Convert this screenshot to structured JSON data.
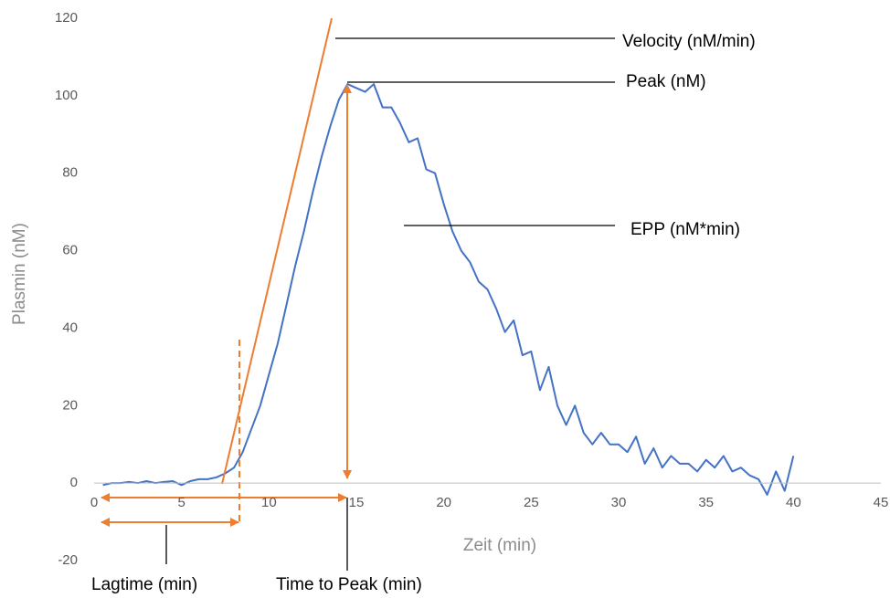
{
  "chart_data": {
    "type": "line",
    "x_label": "Zeit (min)",
    "y_label": "Plasmin (nM)",
    "x": [
      0.5,
      1,
      1.5,
      2,
      2.5,
      3,
      3.5,
      4,
      4.5,
      5,
      5.5,
      6,
      6.5,
      7,
      7.5,
      8,
      8.5,
      9,
      9.5,
      10,
      10.5,
      11,
      11.5,
      12,
      12.5,
      13,
      13.5,
      14,
      14.5,
      15,
      15.5,
      16,
      16.5,
      17,
      17.5,
      18,
      18.5,
      19,
      19.5,
      20,
      20.5,
      21,
      21.5,
      22,
      22.5,
      23,
      23.5,
      24,
      24.5,
      25,
      25.5,
      26,
      26.5,
      27,
      27.5,
      28,
      28.5,
      29,
      29.5,
      30,
      30.5,
      31,
      31.5,
      32,
      32.5,
      33,
      33.5,
      34,
      34.5,
      35,
      35.5,
      36,
      36.5,
      37,
      37.5,
      38,
      38.5,
      39,
      39.5,
      40
    ],
    "series": [
      {
        "color": "#4472c4",
        "values": [
          -0.5,
          0,
          0,
          0.3,
          0,
          0.5,
          0,
          0.3,
          0.5,
          -0.5,
          0.5,
          1,
          1,
          1.5,
          2.5,
          4,
          8,
          14,
          20,
          28,
          36,
          46,
          56,
          65,
          75,
          84,
          92,
          99,
          103,
          102,
          101,
          103,
          97,
          97,
          93,
          88,
          89,
          81,
          80,
          72,
          65,
          60,
          57,
          52,
          50,
          45,
          39,
          42,
          33,
          34,
          24,
          30,
          20,
          15,
          20,
          13,
          10,
          13,
          10,
          10,
          8,
          12,
          5,
          9,
          4,
          7,
          5,
          5,
          3,
          6,
          4,
          7,
          3,
          4,
          2,
          1,
          -3,
          3,
          -2,
          7
        ]
      }
    ],
    "xlim": [
      0,
      45
    ],
    "xticks": [
      0,
      5,
      10,
      15,
      20,
      25,
      30,
      35,
      40,
      45
    ],
    "ylim": [
      -20,
      120
    ],
    "yticks": [
      -20,
      0,
      20,
      40,
      60,
      80,
      100,
      120
    ],
    "grid": false,
    "annotations": [
      "Velocity (nM/min)",
      "Peak (nM)",
      "EPP (nM*min)",
      "Lagtime (min)",
      "Time to Peak (min)"
    ]
  }
}
